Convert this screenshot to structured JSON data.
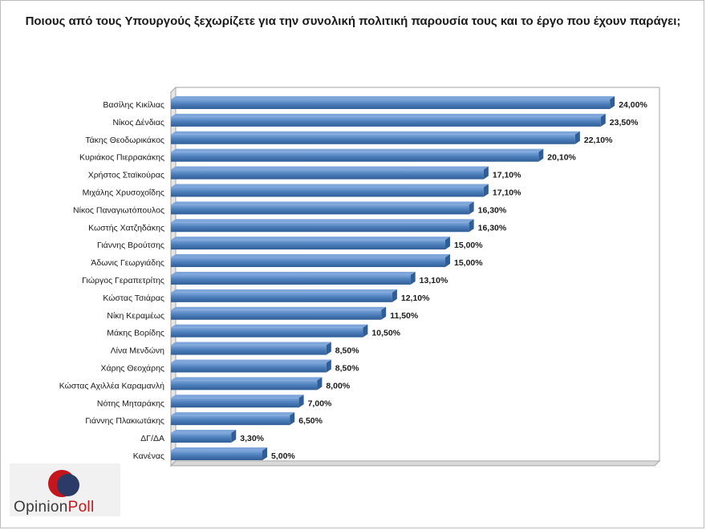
{
  "chart_data": {
    "type": "bar",
    "orientation": "horizontal",
    "title": "Ποιους από τους Υπουργούς  ξεχωρίζετε για την συνολική πολιτική παρουσία τους και το έργο που έχουν παράγει;",
    "categories": [
      "Βασίλης Κικίλιας",
      "Νίκος Δένδιας",
      "Τάκης Θεοδωρικάκος",
      "Κυριάκος Πιερρακάκης",
      "Χρήστος Σταϊκούρας",
      "Μιχάλης Χρυσοχοΐδης",
      "Νίκος Παναγιωτόπουλος",
      "Κωστής Χατζηδάκης",
      "Γιάννης Βρούτσης",
      "Άδωνις Γεωργιάδης",
      "Γιώργος Γεραπετρίτης",
      "Κώστας Τσιάρας",
      "Νίκη Κεραμέως",
      "Μάκης Βορίδης",
      "Λίνα Μενδώνη",
      "Χάρης Θεοχάρης",
      "Κώστας Αχιλλέα Καραμανλή",
      "Νότης Μηταράκης",
      "Γιάννης Πλακιωτάκης",
      "ΔΓ/ΔΑ",
      "Κανένας"
    ],
    "values": [
      24.0,
      23.5,
      22.1,
      20.1,
      17.1,
      17.1,
      16.3,
      16.3,
      15.0,
      15.0,
      13.1,
      12.1,
      11.5,
      10.5,
      8.5,
      8.5,
      8.0,
      7.0,
      6.5,
      3.3,
      5.0
    ],
    "value_labels": [
      "24,00%",
      "23,50%",
      "22,10%",
      "20,10%",
      "17,10%",
      "17,10%",
      "16,30%",
      "16,30%",
      "15,00%",
      "15,00%",
      "13,10%",
      "12,10%",
      "11,50%",
      "10,50%",
      "8,50%",
      "8,50%",
      "8,00%",
      "7,00%",
      "6,50%",
      "3,30%",
      "5,00%"
    ],
    "xlim": [
      0,
      25
    ],
    "grid": false,
    "legend": "none",
    "colors": {
      "bar": "#4f81bd",
      "bar_light": "#7ea6db",
      "bar_dark": "#2f5d97",
      "wall": "#d9d9d9"
    }
  },
  "logo": {
    "text_main": "Opinion",
    "text_accent": "Poll",
    "colors": {
      "red": "#c4161c",
      "navy": "#2b3a67"
    }
  }
}
